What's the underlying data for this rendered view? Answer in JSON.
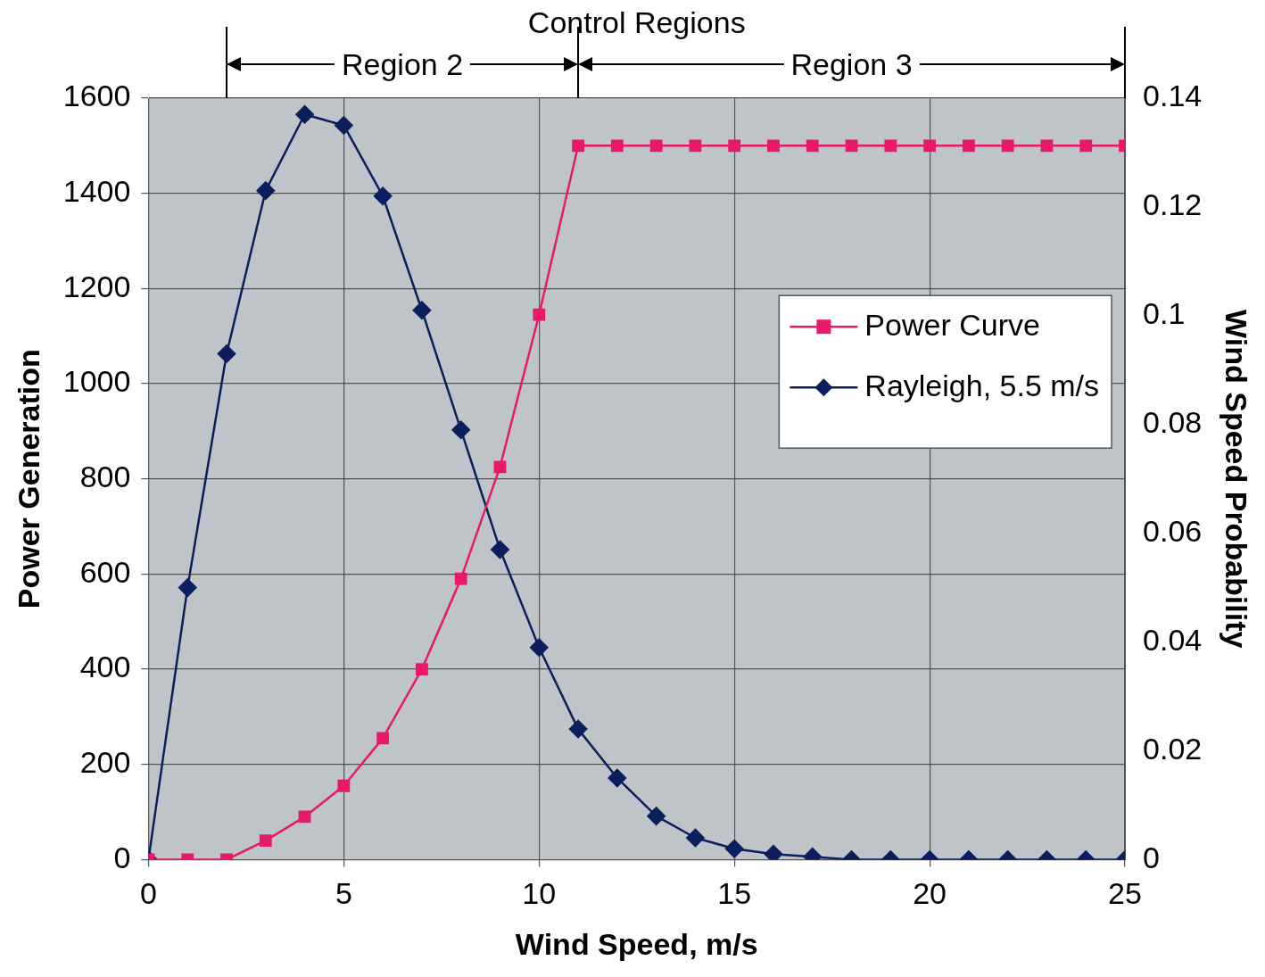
{
  "chart_data": {
    "type": "line",
    "title": "Control Regions",
    "xlabel": "Wind Speed, m/s",
    "ylabel": "Power Generation",
    "y2label": "Wind Speed Probability",
    "x": [
      0,
      1,
      2,
      3,
      4,
      5,
      6,
      7,
      8,
      9,
      10,
      11,
      12,
      13,
      14,
      15,
      16,
      17,
      18,
      19,
      20,
      21,
      22,
      23,
      24,
      25
    ],
    "series": [
      {
        "name": "Power Curve",
        "color": "#e8196b",
        "marker": "square",
        "values": [
          0,
          0,
          0,
          40,
          90,
          155,
          255,
          400,
          590,
          825,
          1145,
          1500,
          1500,
          1500,
          1500,
          1500,
          1500,
          1500,
          1500,
          1500,
          1500,
          1500,
          1500,
          1500,
          1500,
          1500
        ]
      },
      {
        "name": "Rayleigh, 5.5 m/s",
        "color": "#0a1f5c",
        "marker": "diamond",
        "axis": "y2",
        "values": [
          0,
          0.05,
          0.093,
          0.123,
          0.137,
          0.135,
          0.122,
          0.101,
          0.079,
          0.057,
          0.039,
          0.024,
          0.015,
          0.008,
          0.004,
          0.002,
          0.001,
          0.0005,
          0,
          0,
          0,
          0,
          0,
          0,
          0,
          0
        ]
      }
    ],
    "annotations": [
      "Region 2",
      "Region 3"
    ],
    "xlim": [
      0,
      25
    ],
    "xticks": [
      0,
      5,
      10,
      15,
      20,
      25
    ],
    "ylim": [
      0,
      1600
    ],
    "yticks": [
      0,
      200,
      400,
      600,
      800,
      1000,
      1200,
      1400,
      1600
    ],
    "y2lim": [
      0,
      0.14
    ],
    "y2ticks": [
      0,
      0.02,
      0.04,
      0.06,
      0.08,
      0.1,
      0.12,
      0.14
    ],
    "grid": true,
    "legend": "right"
  }
}
